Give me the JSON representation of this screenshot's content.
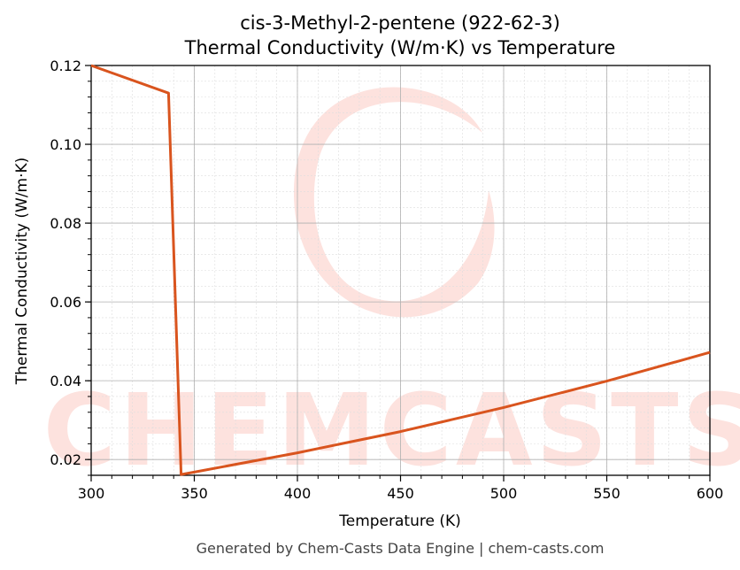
{
  "chart_data": {
    "type": "line",
    "title": "cis-3-Methyl-2-pentene (922-62-3)",
    "subtitle": "Thermal Conductivity (W/m·K) vs Temperature",
    "xlabel": "Temperature (K)",
    "ylabel": "Thermal Conductivity (W/m·K)",
    "xlim": [
      300,
      600
    ],
    "ylim": [
      0.016,
      0.12
    ],
    "xticks": [
      300,
      350,
      400,
      450,
      500,
      550,
      600
    ],
    "xtick_labels": [
      "300",
      "350",
      "400",
      "450",
      "500",
      "550",
      "600"
    ],
    "yticks": [
      0.02,
      0.04,
      0.06,
      0.08,
      0.1,
      0.12
    ],
    "ytick_labels": [
      "0.02",
      "0.04",
      "0.06",
      "0.08",
      "0.10",
      "0.12"
    ],
    "grid": true,
    "series": [
      {
        "color": "#d9541e",
        "x": [
          300,
          337.5,
          343.6,
          350,
          400,
          450,
          500,
          550,
          600
        ],
        "y": [
          0.12,
          0.113,
          0.0162,
          0.0168,
          0.0217,
          0.0271,
          0.0332,
          0.0399,
          0.0472
        ]
      }
    ]
  },
  "watermark": {
    "text": "CHEMCASTS",
    "color": "#fde2de"
  },
  "footer": "Generated by Chem-Casts Data Engine | chem-casts.com"
}
